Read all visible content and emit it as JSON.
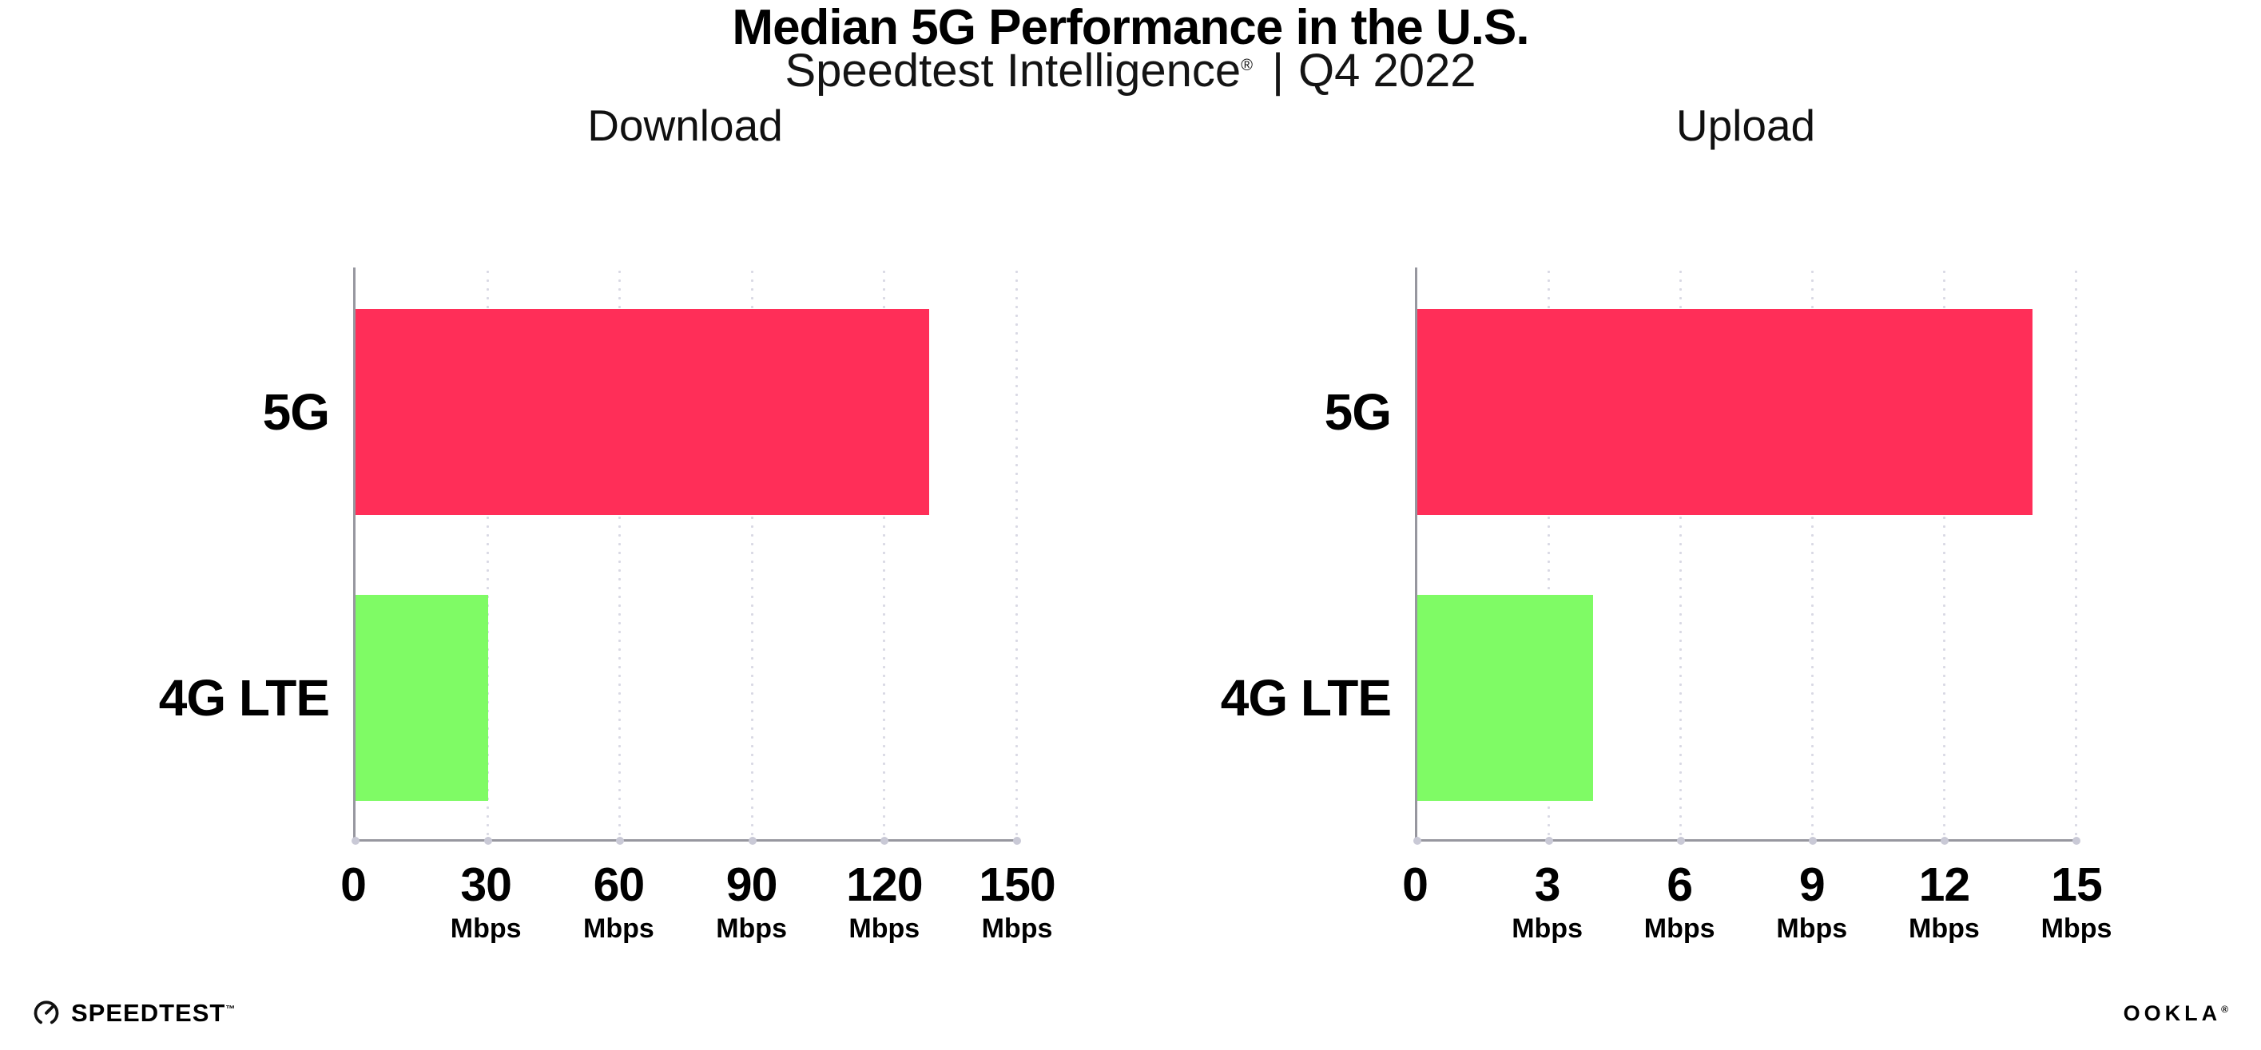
{
  "header": {
    "title": "Median 5G Performance in the U.S.",
    "subtitle_brand": "Speedtest Intelligence",
    "subtitle_reg": "®",
    "subtitle_divider": "|",
    "subtitle_period": "Q4 2022"
  },
  "colors": {
    "bar_5g": "#FF2E58",
    "bar_4g_lte": "#7FFB65",
    "axis_line": "#97979f",
    "gridline": "#d9d9e4",
    "axis_tick_dot": "#c9c9d6",
    "title_text": "#000000",
    "chart_title_text": "#101010"
  },
  "chart_data": [
    {
      "type": "bar",
      "orientation": "horizontal",
      "title": "Download",
      "categories": [
        "5G",
        "4G LTE"
      ],
      "values": [
        130,
        30
      ],
      "unit": "Mbps",
      "xlim": [
        0,
        150
      ],
      "xticks": [
        0,
        30,
        60,
        90,
        120,
        150
      ],
      "tick_unit": "Mbps",
      "bar_colors": [
        "#FF2E58",
        "#7FFB65"
      ],
      "grid": "dotted vertical gridlines at each tick",
      "legend": "none",
      "xlabel": "",
      "ylabel": ""
    },
    {
      "type": "bar",
      "orientation": "horizontal",
      "title": "Upload",
      "categories": [
        "5G",
        "4G LTE"
      ],
      "values": [
        14,
        4
      ],
      "unit": "Mbps",
      "xlim": [
        0,
        15
      ],
      "xticks": [
        0,
        3,
        6,
        9,
        12,
        15
      ],
      "tick_unit": "Mbps",
      "bar_colors": [
        "#FF2E58",
        "#7FFB65"
      ],
      "grid": "dotted vertical gridlines at each tick",
      "legend": "none",
      "xlabel": "",
      "ylabel": ""
    }
  ],
  "footer": {
    "speedtest_label": "SPEEDTEST",
    "speedtest_mark": "™",
    "ookla_label": "OOKLA",
    "ookla_mark": "®"
  }
}
